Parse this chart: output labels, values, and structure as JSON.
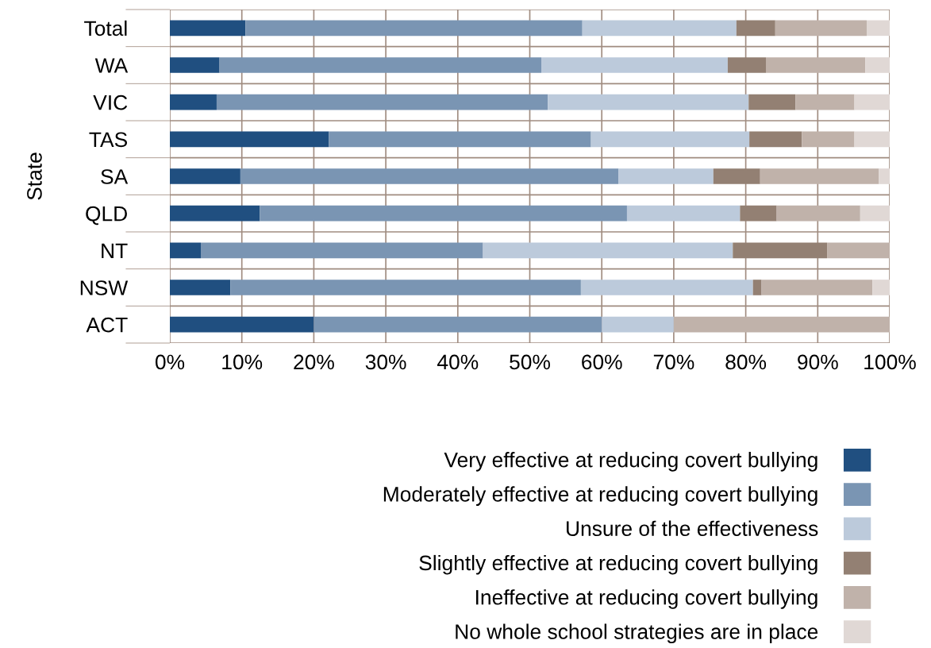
{
  "chart_data": {
    "type": "bar",
    "orientation": "horizontal",
    "stacked": true,
    "ylabel": "State",
    "categories": [
      "Total",
      "WA",
      "VIC",
      "TAS",
      "SA",
      "QLD",
      "NT",
      "NSW",
      "ACT"
    ],
    "series": [
      {
        "name": "Very effective at reducing covert bullying",
        "color": "#204f80",
        "values": [
          10.5,
          6.9,
          6.5,
          22.1,
          9.8,
          12.5,
          4.3,
          8.4,
          20.0
        ]
      },
      {
        "name": "Moderately effective at reducing covert bullying",
        "color": "#7a95b3",
        "values": [
          46.8,
          44.7,
          46.0,
          36.4,
          52.5,
          51.0,
          39.2,
          48.7,
          40.0
        ]
      },
      {
        "name": "Unsure of the effectiveness",
        "color": "#bccadb",
        "values": [
          21.4,
          25.9,
          27.9,
          22.0,
          13.2,
          15.7,
          34.7,
          23.9,
          10.0
        ]
      },
      {
        "name": "Slightly effective at reducing covert bullying",
        "color": "#938073",
        "values": [
          5.4,
          5.3,
          6.5,
          7.3,
          6.5,
          5.1,
          13.1,
          1.2,
          0
        ]
      },
      {
        "name": "Ineffective at reducing covert bullying",
        "color": "#c0b2aa",
        "values": [
          12.7,
          13.8,
          8.2,
          7.3,
          16.5,
          11.6,
          8.7,
          15.4,
          30.0
        ]
      },
      {
        "name": "No whole school strategies are in place",
        "color": "#e0d8d5",
        "values": [
          3.2,
          3.4,
          4.9,
          4.9,
          1.5,
          4.1,
          0,
          2.4,
          0
        ]
      }
    ],
    "xlim": [
      0,
      100
    ],
    "xticks": [
      {
        "value": 0,
        "label": "0%"
      },
      {
        "value": 10,
        "label": "10%"
      },
      {
        "value": 20,
        "label": "20%"
      },
      {
        "value": 30,
        "label": "30%"
      },
      {
        "value": 40,
        "label": "40%"
      },
      {
        "value": 50,
        "label": "50%"
      },
      {
        "value": 60,
        "label": "60%"
      },
      {
        "value": 70,
        "label": "70%"
      },
      {
        "value": 80,
        "label": "80%"
      },
      {
        "value": 90,
        "label": "90%"
      },
      {
        "value": 100,
        "label": "100%"
      }
    ],
    "grid": true,
    "legend": "bottom"
  }
}
